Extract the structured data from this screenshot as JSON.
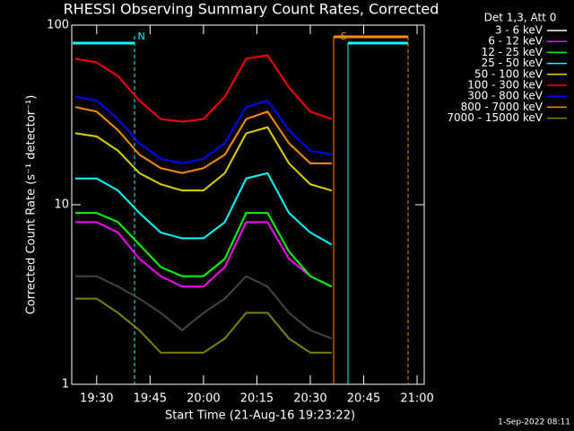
{
  "chart_data": {
    "type": "line",
    "title": "RHESSI Observing Summary Count Rates, Corrected",
    "xlabel": "Start Time (21-Aug-16 19:23:22)",
    "ylabel": "Corrected Count Rate (s⁻¹ detector⁻¹)",
    "legend_title": "Det 1,3, Att 0",
    "footer": "1-Sep-2022 08:11",
    "log_y": true,
    "xlim": [
      "19:23",
      "21:02"
    ],
    "xticks": [
      "19:30",
      "19:45",
      "20:00",
      "20:15",
      "20:30",
      "20:45",
      "21:00"
    ],
    "ylim": [
      1,
      100
    ],
    "yticks": [
      1,
      10,
      100
    ],
    "annotations": [
      {
        "text": "N",
        "x": "19:40",
        "color": "#00ffff"
      },
      {
        "text": "S",
        "x": "20:37",
        "color": "#ff8c00"
      }
    ],
    "x": [
      "19:24",
      "19:30",
      "19:36",
      "19:42",
      "19:48",
      "19:54",
      "20:00",
      "20:06",
      "20:12",
      "20:18",
      "20:24",
      "20:30",
      "20:36"
    ],
    "series": [
      {
        "name": "3 - 6 keV",
        "color": "#000000",
        "values": [
          4,
          4,
          3.5,
          3,
          2.5,
          2,
          2.5,
          3,
          4,
          3.5,
          2.5,
          2,
          1.8
        ]
      },
      {
        "name": "6 - 12 keV",
        "color": "#ff00ff",
        "values": [
          8,
          8,
          7,
          5,
          4,
          3.5,
          3.5,
          4.5,
          8,
          8,
          5,
          4,
          3.5
        ]
      },
      {
        "name": "12 - 25 keV",
        "color": "#00ff00",
        "values": [
          9,
          9,
          8,
          6,
          4.5,
          4,
          4,
          5,
          9,
          9,
          5.5,
          4,
          3.5
        ]
      },
      {
        "name": "25 - 50 keV",
        "color": "#00ffff",
        "values": [
          14,
          14,
          12,
          9,
          7,
          6.5,
          6.5,
          8,
          14,
          15,
          9,
          7,
          6
        ]
      },
      {
        "name": "50 - 100 keV",
        "color": "#e0d000",
        "values": [
          25,
          24,
          20,
          15,
          13,
          12,
          12,
          15,
          25,
          27,
          17,
          13,
          12
        ]
      },
      {
        "name": "100 - 300 keV",
        "color": "#ff0000",
        "values": [
          65,
          62,
          52,
          38,
          30,
          29,
          30,
          40,
          65,
          68,
          45,
          33,
          30
        ]
      },
      {
        "name": "300 - 800 keV",
        "color": "#0000ff",
        "values": [
          40,
          38,
          30,
          22,
          18,
          17,
          18,
          22,
          35,
          38,
          26,
          20,
          19
        ]
      },
      {
        "name": "800 - 7000 keV",
        "color": "#ff8c00",
        "values": [
          35,
          33,
          26,
          19,
          16,
          15,
          16,
          19,
          30,
          33,
          22,
          17,
          17
        ]
      },
      {
        "name": "7000 - 15000 keV",
        "color": "#808000",
        "values": [
          3,
          3,
          2.5,
          2,
          1.5,
          1.5,
          1.5,
          1.8,
          2.5,
          2.5,
          1.8,
          1.5,
          1.5
        ]
      }
    ]
  }
}
